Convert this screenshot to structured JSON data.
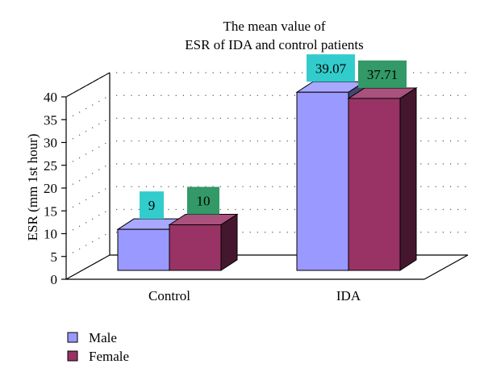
{
  "chart_data": {
    "type": "bar",
    "title": [
      "The mean value of",
      "ESR of IDA and control patients"
    ],
    "ylabel": "ESR (mm 1st hour)",
    "xlabel": "",
    "ylim": [
      0,
      40
    ],
    "yticks": [
      "0",
      "5",
      "10",
      "15",
      "20",
      "25",
      "30",
      "35",
      "40"
    ],
    "categories": [
      "Control",
      "IDA"
    ],
    "series": [
      {
        "name": "Male",
        "values": [
          9,
          39.07
        ],
        "labels": [
          "9",
          "39.07"
        ],
        "color": "#9999ff",
        "label_bg": "#33cccc"
      },
      {
        "name": "Female",
        "values": [
          10,
          37.71
        ],
        "labels": [
          "10",
          "37.71"
        ],
        "color": "#993366",
        "label_bg": "#339966"
      }
    ],
    "grid": true,
    "legend": "bottom-left",
    "style": "3d"
  }
}
